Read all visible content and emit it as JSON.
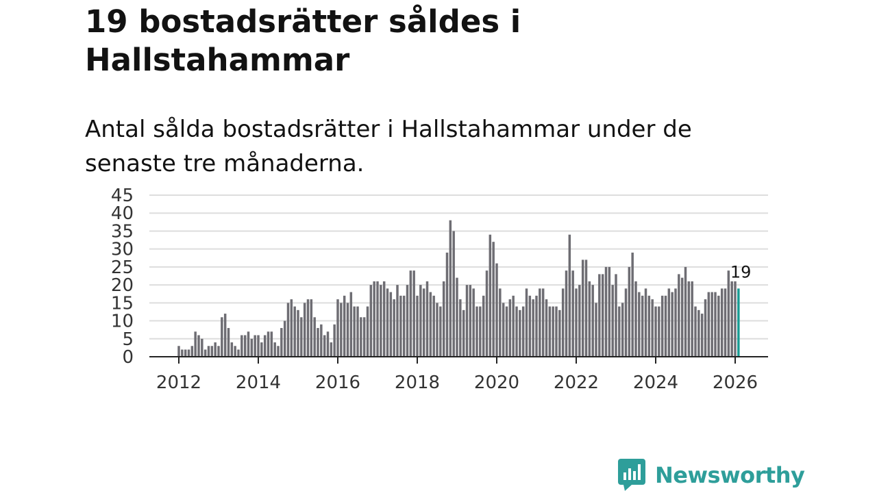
{
  "title": "19 bostadsrätter såldes i Hallstahammar",
  "subtitle": "Antal sålda bostadsrätter i Hallstahammar under de senaste tre månaderna.",
  "brand": {
    "name": "Newsworthy",
    "color": "#2e9e9a"
  },
  "colors": {
    "bar": "#6e6d73",
    "highlight": "#1a9c94",
    "grid": "#dddddd",
    "axis": "#222222"
  },
  "chart_data": {
    "type": "bar",
    "title": "19 bostadsrätter såldes i Hallstahammar",
    "subtitle": "Antal sålda bostadsrätter i Hallstahammar under de senaste tre månaderna.",
    "xlabel": "",
    "ylabel": "",
    "ylim": [
      0,
      45
    ],
    "yticks": [
      0,
      5,
      10,
      15,
      20,
      25,
      30,
      35,
      40,
      45
    ],
    "xticks": [
      {
        "year": 2012,
        "label": "2012"
      },
      {
        "year": 2014,
        "label": "2014"
      },
      {
        "year": 2016,
        "label": "2016"
      },
      {
        "year": 2018,
        "label": "2018"
      },
      {
        "year": 2020,
        "label": "2020"
      },
      {
        "year": 2022,
        "label": "2022"
      },
      {
        "year": 2024,
        "label": "2024"
      },
      {
        "year": 2026,
        "label": "2026"
      }
    ],
    "grid": true,
    "start": "2012-01",
    "frequency": "monthly",
    "highlight_last": true,
    "last_label": "19",
    "values": [
      3,
      2,
      2,
      2,
      3,
      7,
      6,
      5,
      2,
      3,
      3,
      4,
      3,
      11,
      12,
      8,
      4,
      3,
      2,
      6,
      6,
      7,
      5,
      6,
      6,
      4,
      6,
      7,
      7,
      4,
      3,
      8,
      10,
      15,
      16,
      14,
      13,
      11,
      15,
      16,
      16,
      11,
      8,
      9,
      6,
      7,
      4,
      9,
      16,
      15,
      17,
      15,
      18,
      14,
      14,
      11,
      11,
      14,
      20,
      21,
      21,
      20,
      21,
      19,
      18,
      16,
      20,
      17,
      17,
      20,
      24,
      24,
      17,
      20,
      19,
      21,
      18,
      17,
      15,
      14,
      21,
      29,
      38,
      35,
      22,
      16,
      13,
      20,
      20,
      19,
      14,
      14,
      17,
      24,
      34,
      32,
      26,
      19,
      15,
      14,
      16,
      17,
      14,
      13,
      14,
      19,
      17,
      16,
      17,
      19,
      19,
      16,
      14,
      14,
      14,
      13,
      19,
      24,
      34,
      24,
      19,
      20,
      27,
      27,
      21,
      20,
      15,
      23,
      23,
      25,
      25,
      20,
      23,
      14,
      15,
      19,
      25,
      29,
      21,
      18,
      17,
      19,
      17,
      16,
      14,
      14,
      17,
      17,
      19,
      18,
      19,
      23,
      22,
      25,
      21,
      21,
      14,
      13,
      12,
      16,
      18,
      18,
      18,
      17,
      19,
      19,
      24,
      21,
      21,
      19
    ]
  }
}
